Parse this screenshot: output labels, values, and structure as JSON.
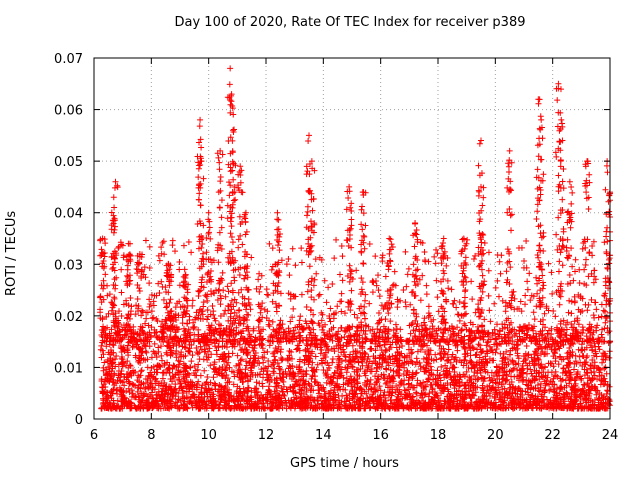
{
  "chart_data": {
    "type": "scatter",
    "title": "Day 100 of 2020, Rate Of TEC Index for receiver p389",
    "xlabel": "GPS time / hours",
    "ylabel": "ROTI / TECUs",
    "xlim": [
      6,
      24
    ],
    "ylim": [
      0,
      0.07
    ],
    "xticks": [
      "6",
      "8",
      "10",
      "12",
      "14",
      "16",
      "18",
      "20",
      "22",
      "24"
    ],
    "yticks": [
      "0",
      "0.01",
      "0.02",
      "0.03",
      "0.04",
      "0.05",
      "0.06",
      "0.07"
    ],
    "grid": true,
    "marker": "+",
    "color": "#ff0000",
    "peaks": [
      {
        "x": 6.3,
        "y": 0.035
      },
      {
        "x": 6.7,
        "y": 0.041
      },
      {
        "x": 6.75,
        "y": 0.046
      },
      {
        "x": 7.2,
        "y": 0.034
      },
      {
        "x": 7.6,
        "y": 0.032
      },
      {
        "x": 8.6,
        "y": 0.03
      },
      {
        "x": 9.2,
        "y": 0.028
      },
      {
        "x": 9.7,
        "y": 0.058
      },
      {
        "x": 9.75,
        "y": 0.05
      },
      {
        "x": 10.0,
        "y": 0.04
      },
      {
        "x": 10.4,
        "y": 0.052
      },
      {
        "x": 10.75,
        "y": 0.068
      },
      {
        "x": 10.8,
        "y": 0.063
      },
      {
        "x": 10.85,
        "y": 0.056
      },
      {
        "x": 11.1,
        "y": 0.049
      },
      {
        "x": 11.3,
        "y": 0.04
      },
      {
        "x": 12.4,
        "y": 0.04
      },
      {
        "x": 13.5,
        "y": 0.055
      },
      {
        "x": 13.6,
        "y": 0.05
      },
      {
        "x": 14.9,
        "y": 0.045
      },
      {
        "x": 15.4,
        "y": 0.044
      },
      {
        "x": 16.3,
        "y": 0.035
      },
      {
        "x": 17.2,
        "y": 0.038
      },
      {
        "x": 18.2,
        "y": 0.035
      },
      {
        "x": 18.9,
        "y": 0.035
      },
      {
        "x": 19.5,
        "y": 0.054
      },
      {
        "x": 19.5,
        "y": 0.045
      },
      {
        "x": 20.5,
        "y": 0.052
      },
      {
        "x": 21.5,
        "y": 0.062
      },
      {
        "x": 21.6,
        "y": 0.058
      },
      {
        "x": 22.2,
        "y": 0.065
      },
      {
        "x": 22.3,
        "y": 0.058
      },
      {
        "x": 22.6,
        "y": 0.046
      },
      {
        "x": 23.2,
        "y": 0.05
      },
      {
        "x": 23.9,
        "y": 0.05
      },
      {
        "x": 24.0,
        "y": 0.044
      }
    ],
    "baseline_range": [
      0.002,
      0.018
    ]
  }
}
